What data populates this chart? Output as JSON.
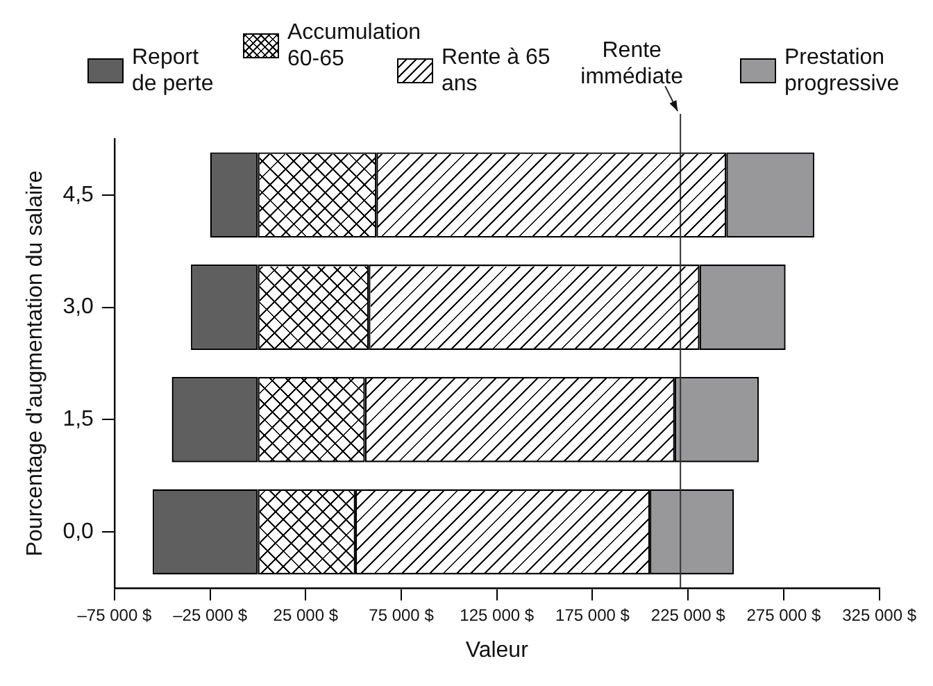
{
  "chart_data": {
    "type": "bar",
    "orientation": "horizontal",
    "stacked": true,
    "xlabel": "Valeur",
    "ylabel": "Pourcentage d'augmentation du salaire",
    "categories": [
      "4,5",
      "3,0",
      "1,5",
      "0,0"
    ],
    "series": [
      {
        "name": "Report de perte",
        "color": "#5f5f5f",
        "values": [
          -25000,
          -35000,
          -45000,
          -55000
        ]
      },
      {
        "name": "Accumulation 60-65",
        "color": "#ffffff",
        "values": [
          62000,
          58000,
          56000,
          51000
        ]
      },
      {
        "name": "Rente à 65 ans",
        "color": "#ffffff",
        "values": [
          183000,
          173000,
          162000,
          154000
        ]
      },
      {
        "name": "Prestation progressive",
        "color": "#98989a",
        "values": [
          46000,
          45000,
          44000,
          44000
        ]
      }
    ],
    "xlim": [
      -75000,
      325000
    ],
    "xticks": [
      {
        "value": -75000,
        "label": "–75 000 $"
      },
      {
        "value": -25000,
        "label": "–25 000 $"
      },
      {
        "value": 25000,
        "label": "25 000 $"
      },
      {
        "value": 75000,
        "label": "75 000 $"
      },
      {
        "value": 125000,
        "label": "125 000 $"
      },
      {
        "value": 175000,
        "label": "175 000 $"
      },
      {
        "value": 225000,
        "label": "225 000 $"
      },
      {
        "value": 275000,
        "label": "275 000 $"
      },
      {
        "value": 325000,
        "label": "325 000 $"
      }
    ],
    "ref_lines": [
      {
        "axis": "x",
        "value": 221000,
        "label": "Rente immédiate"
      }
    ],
    "grid": false,
    "legend": "top"
  }
}
